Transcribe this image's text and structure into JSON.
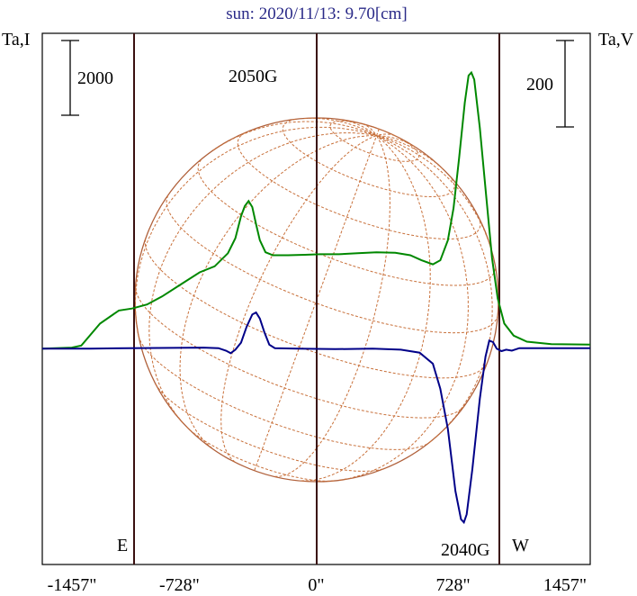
{
  "chart_data": {
    "type": "line",
    "title": "sun: 2020/11/13: 9.70[cm]",
    "left_axis_label": "Ta,I",
    "right_axis_label": "Ta,V",
    "left_scale_label": "2000",
    "right_scale_label": "200",
    "x_ticks": [
      {
        "value": -1457,
        "label": "-1457\""
      },
      {
        "value": -728,
        "label": "-728\""
      },
      {
        "value": 0,
        "label": "0\""
      },
      {
        "value": 728,
        "label": "728\""
      },
      {
        "value": 1457,
        "label": "1457\""
      }
    ],
    "xlim": [
      -1457,
      1457
    ],
    "limb_labels": {
      "east": "E",
      "west": "W"
    },
    "annotations": [
      {
        "text": "2050G",
        "x": -325
      },
      {
        "text": "2040G",
        "x": 820
      }
    ],
    "series": [
      {
        "color": "#008800",
        "points": [
          [
            -1457,
            0
          ],
          [
            -1300,
            10
          ],
          [
            -1250,
            30
          ],
          [
            -1150,
            250
          ],
          [
            -1050,
            380
          ],
          [
            -980,
            400
          ],
          [
            -900,
            440
          ],
          [
            -820,
            520
          ],
          [
            -720,
            640
          ],
          [
            -620,
            760
          ],
          [
            -540,
            820
          ],
          [
            -470,
            950
          ],
          [
            -430,
            1100
          ],
          [
            -400,
            1320
          ],
          [
            -380,
            1420
          ],
          [
            -360,
            1470
          ],
          [
            -340,
            1410
          ],
          [
            -320,
            1240
          ],
          [
            -300,
            1080
          ],
          [
            -270,
            960
          ],
          [
            -230,
            930
          ],
          [
            -150,
            930
          ],
          [
            -60,
            935
          ],
          [
            20,
            940
          ],
          [
            120,
            940
          ],
          [
            220,
            950
          ],
          [
            320,
            960
          ],
          [
            420,
            955
          ],
          [
            500,
            930
          ],
          [
            560,
            880
          ],
          [
            620,
            840
          ],
          [
            660,
            880
          ],
          [
            700,
            1080
          ],
          [
            730,
            1400
          ],
          [
            760,
            1900
          ],
          [
            790,
            2450
          ],
          [
            810,
            2720
          ],
          [
            825,
            2750
          ],
          [
            840,
            2680
          ],
          [
            870,
            2200
          ],
          [
            905,
            1500
          ],
          [
            935,
            900
          ],
          [
            965,
            500
          ],
          [
            1000,
            250
          ],
          [
            1050,
            130
          ],
          [
            1120,
            70
          ],
          [
            1250,
            45
          ],
          [
            1457,
            40
          ]
        ]
      },
      {
        "color": "#000088",
        "points": [
          [
            -1457,
            0
          ],
          [
            -1200,
            0
          ],
          [
            -1000,
            5
          ],
          [
            -600,
            10
          ],
          [
            -520,
            5
          ],
          [
            -480,
            -20
          ],
          [
            -455,
            -45
          ],
          [
            -430,
            -10
          ],
          [
            -400,
            60
          ],
          [
            -370,
            220
          ],
          [
            -340,
            340
          ],
          [
            -320,
            360
          ],
          [
            -300,
            300
          ],
          [
            -275,
            160
          ],
          [
            -250,
            40
          ],
          [
            -220,
            5
          ],
          [
            -100,
            0
          ],
          [
            100,
            -5
          ],
          [
            300,
            0
          ],
          [
            450,
            -10
          ],
          [
            550,
            -40
          ],
          [
            620,
            -150
          ],
          [
            660,
            -400
          ],
          [
            700,
            -800
          ],
          [
            740,
            -1420
          ],
          [
            770,
            -1700
          ],
          [
            785,
            -1730
          ],
          [
            800,
            -1650
          ],
          [
            830,
            -1200
          ],
          [
            870,
            -500
          ],
          [
            900,
            -80
          ],
          [
            920,
            80
          ],
          [
            940,
            65
          ],
          [
            960,
            0
          ],
          [
            985,
            -25
          ],
          [
            1010,
            -10
          ],
          [
            1040,
            -20
          ],
          [
            1080,
            5
          ],
          [
            1200,
            5
          ],
          [
            1457,
            5
          ]
        ]
      }
    ],
    "ylim": [
      -1800,
      2800
    ]
  }
}
